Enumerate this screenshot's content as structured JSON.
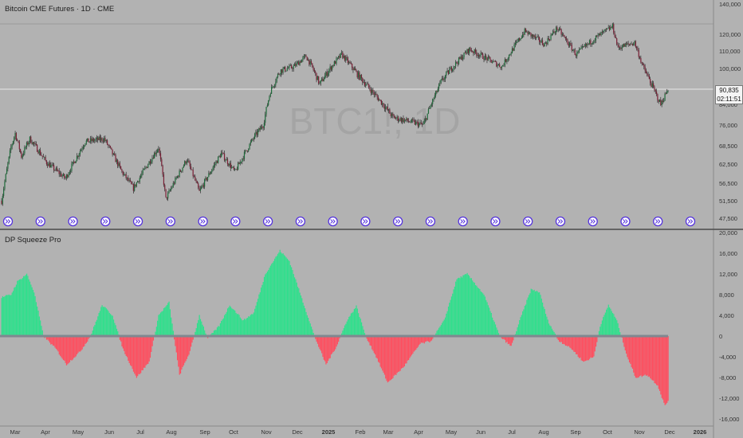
{
  "header": {
    "symbol_title": "Bitcoin CME Futures · 1D · CME",
    "indicator_title": "DP Squeeze Pro",
    "watermark": "BTC1!, 1D"
  },
  "last_price": {
    "value": "90,835",
    "countdown": "02:11:51"
  },
  "colors": {
    "background": "#b2b2b2",
    "candle_up": "#1e6b3a",
    "candle_down": "#7a1f35",
    "hist_pos": "#2ee08c",
    "hist_neg": "#ff4d5e",
    "zero_line": "#808890",
    "event_marker": "#5533dd"
  },
  "x_axis_labels": [
    "Mar",
    "Apr",
    "May",
    "Jun",
    "Jul",
    "Aug",
    "Sep",
    "Oct",
    "Nov",
    "Dec",
    "2025",
    "Feb",
    "Mar",
    "Apr",
    "May",
    "Jun",
    "Jul",
    "Aug",
    "Sep",
    "Oct",
    "Nov",
    "Dec",
    "2026"
  ],
  "event_markers": {
    "icon": "double-chevron-right-icon",
    "count": 22
  },
  "chart_data": [
    {
      "type": "candlestick",
      "title": "Bitcoin CME Futures · 1D · CME",
      "ylim": [
        45000,
        140000
      ],
      "y_ticks": [
        "140,000",
        "120,000",
        "110,000",
        "100,000",
        "84,000",
        "76,000",
        "68,500",
        "62,500",
        "56,500",
        "51,500",
        "47,500"
      ],
      "x_start": "2024-03-01",
      "x_end": "2025-11-28",
      "approx_close_series": [
        {
          "x": "2024-03-01",
          "y": 51500
        },
        {
          "x": "2024-03-10",
          "y": 68000
        },
        {
          "x": "2024-03-14",
          "y": 73000
        },
        {
          "x": "2024-03-20",
          "y": 65000
        },
        {
          "x": "2024-03-28",
          "y": 71000
        },
        {
          "x": "2024-04-13",
          "y": 63000
        },
        {
          "x": "2024-05-01",
          "y": 58000
        },
        {
          "x": "2024-05-20",
          "y": 70000
        },
        {
          "x": "2024-06-07",
          "y": 71000
        },
        {
          "x": "2024-06-24",
          "y": 60000
        },
        {
          "x": "2024-07-05",
          "y": 55000
        },
        {
          "x": "2024-07-29",
          "y": 68000
        },
        {
          "x": "2024-08-05",
          "y": 52000
        },
        {
          "x": "2024-08-25",
          "y": 64000
        },
        {
          "x": "2024-09-06",
          "y": 54000
        },
        {
          "x": "2024-09-27",
          "y": 66000
        },
        {
          "x": "2024-10-10",
          "y": 60000
        },
        {
          "x": "2024-10-29",
          "y": 72000
        },
        {
          "x": "2024-11-06",
          "y": 76000
        },
        {
          "x": "2024-11-13",
          "y": 90000
        },
        {
          "x": "2024-11-22",
          "y": 99000
        },
        {
          "x": "2024-12-05",
          "y": 101000
        },
        {
          "x": "2024-12-17",
          "y": 107000
        },
        {
          "x": "2024-12-30",
          "y": 93000
        },
        {
          "x": "2025-01-20",
          "y": 108000
        },
        {
          "x": "2025-02-03",
          "y": 98000
        },
        {
          "x": "2025-02-25",
          "y": 86000
        },
        {
          "x": "2025-03-10",
          "y": 79000
        },
        {
          "x": "2025-04-08",
          "y": 76000
        },
        {
          "x": "2025-04-25",
          "y": 94000
        },
        {
          "x": "2025-05-22",
          "y": 111000
        },
        {
          "x": "2025-06-22",
          "y": 101000
        },
        {
          "x": "2025-07-14",
          "y": 122000
        },
        {
          "x": "2025-08-02",
          "y": 114000
        },
        {
          "x": "2025-08-14",
          "y": 124000
        },
        {
          "x": "2025-09-01",
          "y": 108000
        },
        {
          "x": "2025-09-18",
          "y": 117000
        },
        {
          "x": "2025-10-06",
          "y": 125000
        },
        {
          "x": "2025-10-11",
          "y": 112000
        },
        {
          "x": "2025-10-27",
          "y": 115000
        },
        {
          "x": "2025-11-04",
          "y": 101000
        },
        {
          "x": "2025-11-21",
          "y": 84000
        },
        {
          "x": "2025-11-28",
          "y": 90835
        }
      ]
    },
    {
      "type": "bar",
      "title": "DP Squeeze Pro",
      "ylim": [
        -16000,
        20000
      ],
      "y_ticks": [
        "20,000",
        "16,000",
        "12,000",
        "8,000",
        "4,000",
        "0",
        "-4,000",
        "-8,000",
        "-12,000",
        "-16,000"
      ],
      "approx_series": [
        {
          "x": "2024-03-01",
          "y": 7500
        },
        {
          "x": "2024-03-10",
          "y": 8000
        },
        {
          "x": "2024-03-16",
          "y": 10500
        },
        {
          "x": "2024-03-25",
          "y": 12000
        },
        {
          "x": "2024-04-01",
          "y": 8500
        },
        {
          "x": "2024-04-10",
          "y": 0
        },
        {
          "x": "2024-04-22",
          "y": -2500
        },
        {
          "x": "2024-05-02",
          "y": -5500
        },
        {
          "x": "2024-05-15",
          "y": -3000
        },
        {
          "x": "2024-05-25",
          "y": 0
        },
        {
          "x": "2024-06-05",
          "y": 6000
        },
        {
          "x": "2024-06-15",
          "y": 4000
        },
        {
          "x": "2024-06-25",
          "y": -2500
        },
        {
          "x": "2024-07-08",
          "y": -8000
        },
        {
          "x": "2024-07-20",
          "y": -5000
        },
        {
          "x": "2024-07-29",
          "y": 4000
        },
        {
          "x": "2024-08-08",
          "y": 6500
        },
        {
          "x": "2024-08-18",
          "y": -7500
        },
        {
          "x": "2024-08-28",
          "y": -3000
        },
        {
          "x": "2024-09-06",
          "y": 4000
        },
        {
          "x": "2024-09-14",
          "y": -500
        },
        {
          "x": "2024-09-25",
          "y": 2000
        },
        {
          "x": "2024-10-05",
          "y": 6000
        },
        {
          "x": "2024-10-18",
          "y": 3000
        },
        {
          "x": "2024-10-28",
          "y": 4500
        },
        {
          "x": "2024-11-08",
          "y": 12000
        },
        {
          "x": "2024-11-22",
          "y": 16500
        },
        {
          "x": "2024-12-01",
          "y": 14500
        },
        {
          "x": "2024-12-15",
          "y": 6000
        },
        {
          "x": "2024-12-25",
          "y": 0
        },
        {
          "x": "2025-01-05",
          "y": -5500
        },
        {
          "x": "2025-01-15",
          "y": -2000
        },
        {
          "x": "2025-01-25",
          "y": 3000
        },
        {
          "x": "2025-02-03",
          "y": 5800
        },
        {
          "x": "2025-02-12",
          "y": 0
        },
        {
          "x": "2025-02-22",
          "y": -4000
        },
        {
          "x": "2025-03-05",
          "y": -9000
        },
        {
          "x": "2025-03-20",
          "y": -6000
        },
        {
          "x": "2025-04-05",
          "y": -1500
        },
        {
          "x": "2025-04-15",
          "y": -1000
        },
        {
          "x": "2025-04-28",
          "y": 3000
        },
        {
          "x": "2025-05-10",
          "y": 11000
        },
        {
          "x": "2025-05-20",
          "y": 12000
        },
        {
          "x": "2025-06-05",
          "y": 8000
        },
        {
          "x": "2025-06-20",
          "y": 0
        },
        {
          "x": "2025-07-01",
          "y": -2000
        },
        {
          "x": "2025-07-10",
          "y": 3500
        },
        {
          "x": "2025-07-20",
          "y": 9000
        },
        {
          "x": "2025-07-28",
          "y": 8500
        },
        {
          "x": "2025-08-05",
          "y": 3000
        },
        {
          "x": "2025-08-15",
          "y": -800
        },
        {
          "x": "2025-08-28",
          "y": -2500
        },
        {
          "x": "2025-09-08",
          "y": -5000
        },
        {
          "x": "2025-09-18",
          "y": -4000
        },
        {
          "x": "2025-09-24",
          "y": 2000
        },
        {
          "x": "2025-10-02",
          "y": 6000
        },
        {
          "x": "2025-10-10",
          "y": 3000
        },
        {
          "x": "2025-10-20",
          "y": -4000
        },
        {
          "x": "2025-10-28",
          "y": -8000
        },
        {
          "x": "2025-11-08",
          "y": -7500
        },
        {
          "x": "2025-11-18",
          "y": -9500
        },
        {
          "x": "2025-11-25",
          "y": -13500
        },
        {
          "x": "2025-11-28",
          "y": -12500
        }
      ]
    }
  ]
}
